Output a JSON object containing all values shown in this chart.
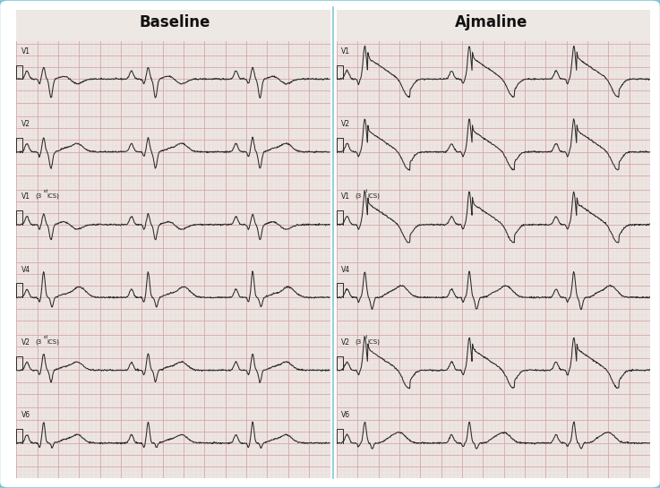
{
  "title_left": "Baseline",
  "title_right": "Ajmaline",
  "leads": [
    "V1",
    "V2",
    "V1",
    "V4",
    "V2",
    "V6"
  ],
  "lead_labels": [
    "V1",
    "V2",
    "V1 (3rd ICS)",
    "V4",
    "V2 (3rd ICS)",
    "V6"
  ],
  "lead_superscripts": [
    "",
    "",
    "rd",
    "",
    "rd",
    ""
  ],
  "lead_has_ics": [
    false,
    false,
    true,
    false,
    true,
    false
  ],
  "bg_color": "#ede8e4",
  "grid_major_color": "#d4a8aa",
  "grid_minor_color": "#e8cfd0",
  "ecg_color": "#2a2a2a",
  "border_color": "#7ec8d8",
  "title_color": "#111111",
  "outer_bg": "#c8c8c8",
  "white_bg": "#ffffff"
}
